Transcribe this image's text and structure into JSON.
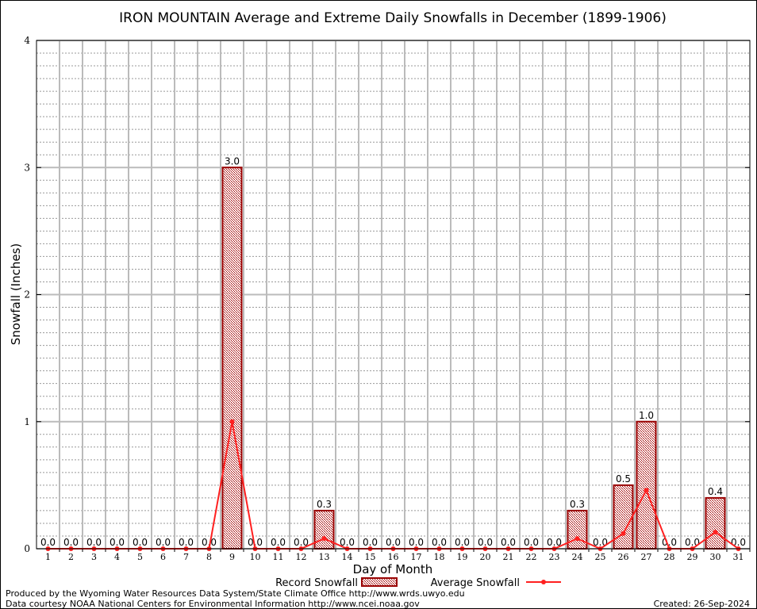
{
  "chart_data": {
    "type": "bar",
    "title": "IRON MOUNTAIN Average and Extreme Daily Snowfalls in December (1899-1906)",
    "xlabel": "Day of Month",
    "ylabel": "Snowfall (Inches)",
    "ylim": [
      0,
      4
    ],
    "yticks": [
      0,
      1,
      2,
      3,
      4
    ],
    "grid": true,
    "legend_position": "bottom",
    "categories": [
      1,
      2,
      3,
      4,
      5,
      6,
      7,
      8,
      9,
      10,
      11,
      12,
      13,
      14,
      15,
      16,
      17,
      18,
      19,
      20,
      21,
      22,
      23,
      24,
      25,
      26,
      27,
      28,
      29,
      30,
      31
    ],
    "series": [
      {
        "name": "Record Snowfall",
        "type": "bar",
        "color": "#990000",
        "values": [
          0,
          0,
          0,
          0,
          0,
          0,
          0,
          0,
          3.0,
          0,
          0,
          0,
          0.3,
          0,
          0,
          0,
          0,
          0,
          0,
          0,
          0,
          0,
          0,
          0.3,
          0,
          0.5,
          1.0,
          0,
          0,
          0.4,
          0
        ]
      },
      {
        "name": "Average Snowfall",
        "type": "line",
        "color": "#ff2020",
        "values": [
          0,
          0,
          0,
          0,
          0,
          0,
          0,
          0,
          1.0,
          0,
          0,
          0,
          0.08,
          0,
          0,
          0,
          0,
          0,
          0,
          0,
          0,
          0,
          0,
          0.08,
          0,
          0.12,
          0.46,
          0,
          0,
          0.13,
          0
        ]
      }
    ]
  },
  "footer": {
    "produced_by": "Produced by the Wyoming Water Resources Data System/State Climate Office http://www.wrds.uwyo.edu",
    "courtesy": "Data courtesy NOAA National Centers for Environmental Information http://www.ncei.noaa.gov",
    "created": "Created: 26-Sep-2024"
  }
}
